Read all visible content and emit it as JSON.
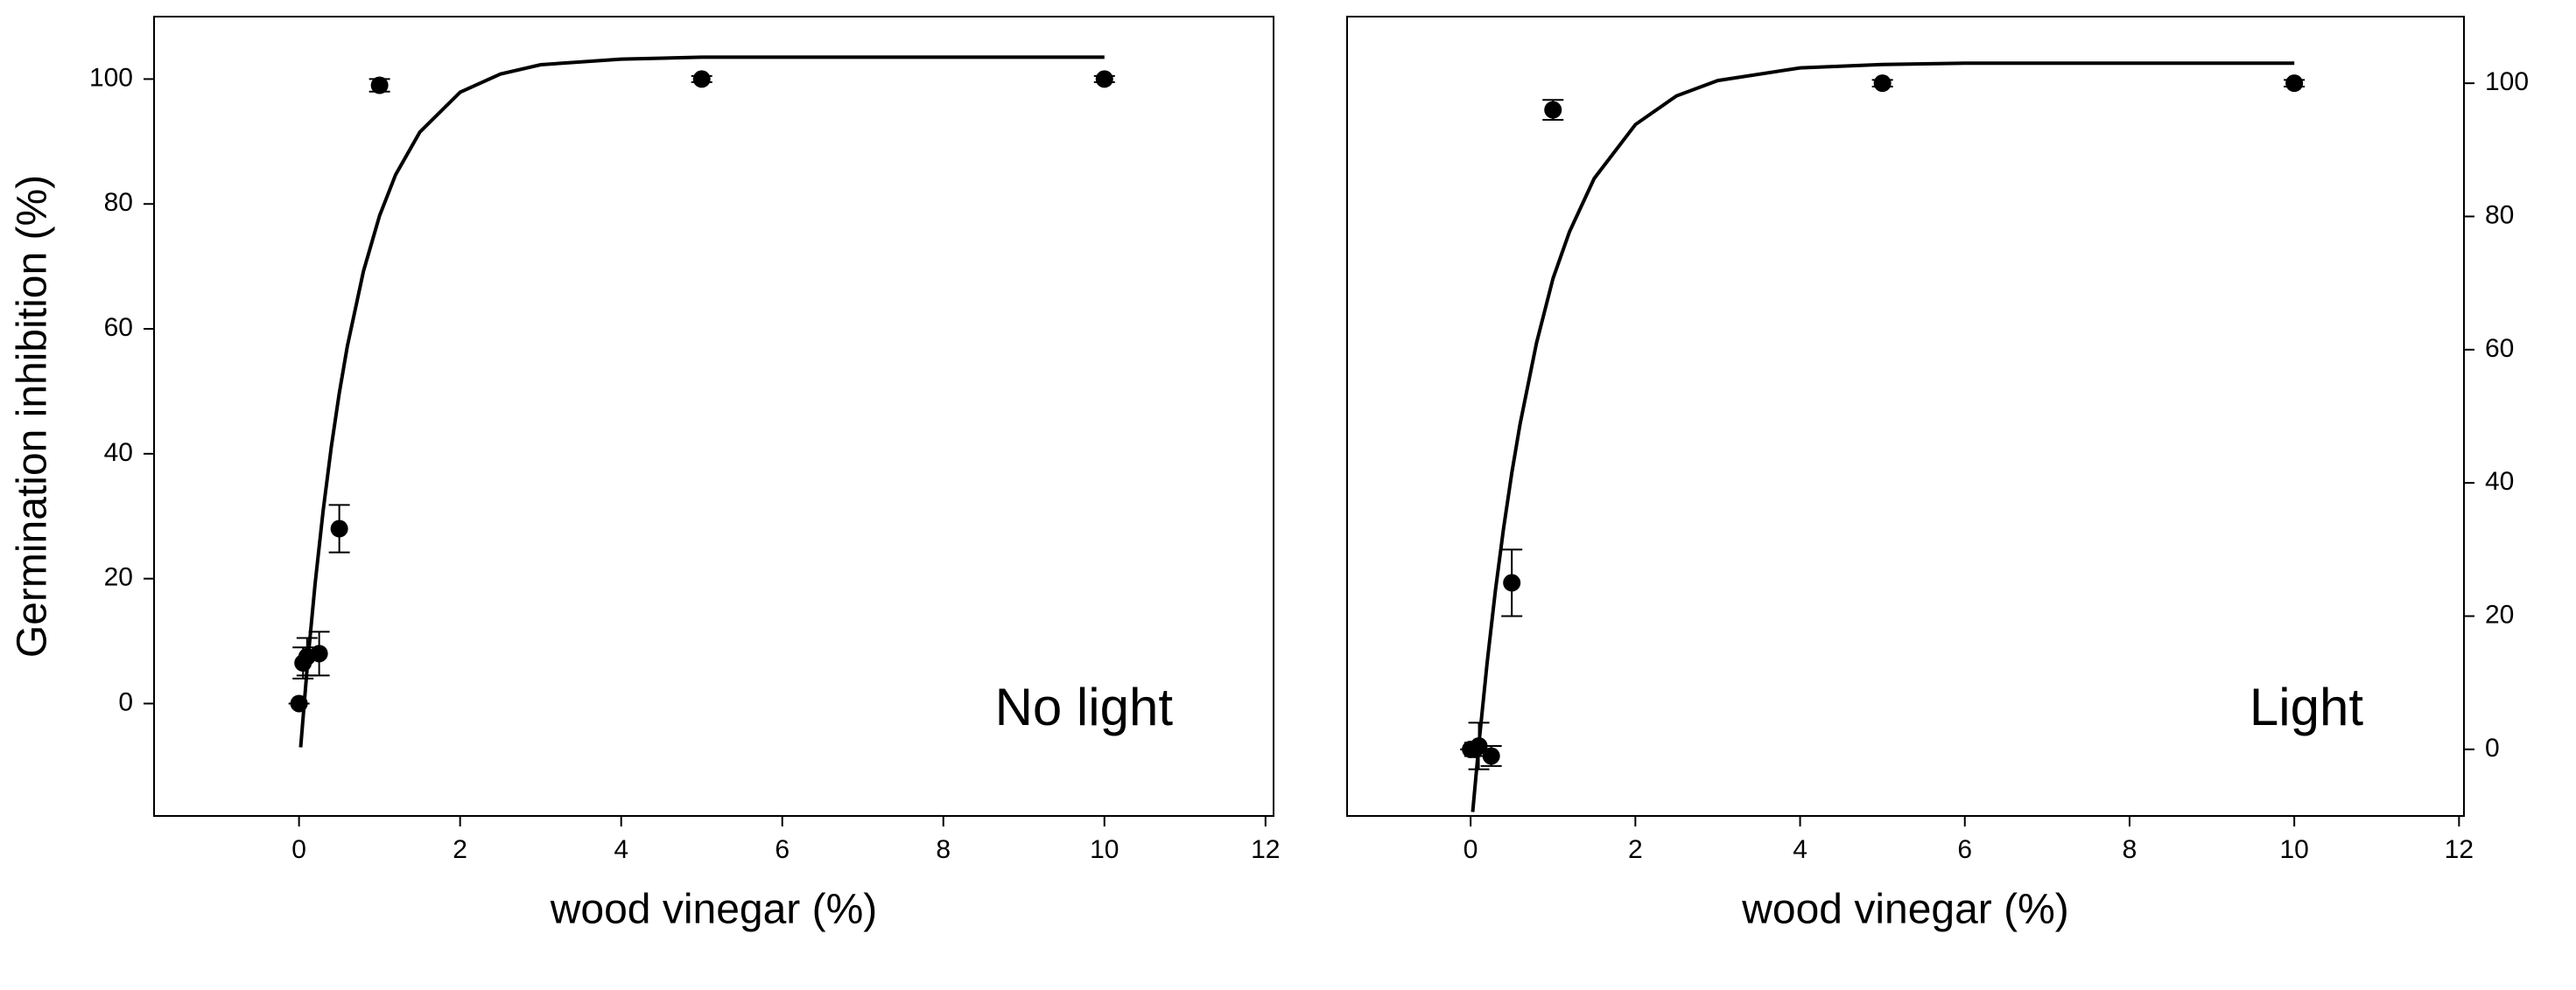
{
  "chart_data": [
    {
      "type": "scatter",
      "xlabel": "wood vinegar (%)",
      "ylabel": "Germination inhibition (%)",
      "annotation": "No light",
      "yaxis_side": "left",
      "color": "#000000",
      "xlim": [
        -1.8,
        12.1
      ],
      "xticks": [
        0,
        2,
        4,
        6,
        8,
        10,
        12
      ],
      "ylim": [
        -18,
        110
      ],
      "yticks": [
        0,
        20,
        40,
        60,
        80,
        100
      ],
      "x": [
        0,
        0.05,
        0.1,
        0.25,
        0.5,
        1,
        5,
        10
      ],
      "values": [
        0,
        6.5,
        7.5,
        8,
        28,
        99,
        100,
        100
      ],
      "errors": [
        0,
        2.5,
        3,
        3.5,
        3.8,
        1,
        0.5,
        0.5
      ],
      "fit": {
        "x": [
          0.02,
          0.1,
          0.2,
          0.3,
          0.4,
          0.5,
          0.6,
          0.8,
          1,
          1.2,
          1.5,
          2,
          2.5,
          3,
          4,
          5,
          6,
          8,
          10
        ],
        "values": [
          -7,
          5.5,
          19.2,
          30.9,
          41,
          49.7,
          57.2,
          69.2,
          78.1,
          84.7,
          91.5,
          97.9,
          100.8,
          102.3,
          103.2,
          103.5,
          103.5,
          103.5,
          103.5
        ]
      }
    },
    {
      "type": "scatter",
      "xlabel": "wood vinegar (%)",
      "annotation": "Light",
      "yaxis_side": "right",
      "color": "#000000",
      "xlim": [
        -1.5,
        12.06
      ],
      "xticks": [
        0,
        2,
        4,
        6,
        8,
        10,
        12
      ],
      "ylim": [
        -10,
        110
      ],
      "yticks": [
        0,
        20,
        40,
        60,
        80,
        100
      ],
      "x": [
        0,
        0.05,
        0.1,
        0.25,
        0.5,
        1,
        5,
        10
      ],
      "values": [
        0,
        0,
        0.5,
        -1,
        25,
        96,
        100,
        100
      ],
      "errors": [
        0,
        1,
        3.5,
        1.5,
        5,
        1.5,
        0.5,
        0.5
      ],
      "fit": {
        "x": [
          0.025,
          0.1,
          0.2,
          0.3,
          0.4,
          0.5,
          0.6,
          0.8,
          1,
          1.2,
          1.5,
          2,
          2.5,
          3,
          4,
          5,
          6,
          8,
          10
        ],
        "values": [
          -9.4,
          0.8,
          13,
          23.8,
          33.2,
          41.5,
          48.8,
          61,
          70.7,
          77.7,
          85.7,
          93.8,
          98.1,
          100.4,
          102.3,
          102.8,
          103,
          103,
          103
        ]
      }
    }
  ]
}
